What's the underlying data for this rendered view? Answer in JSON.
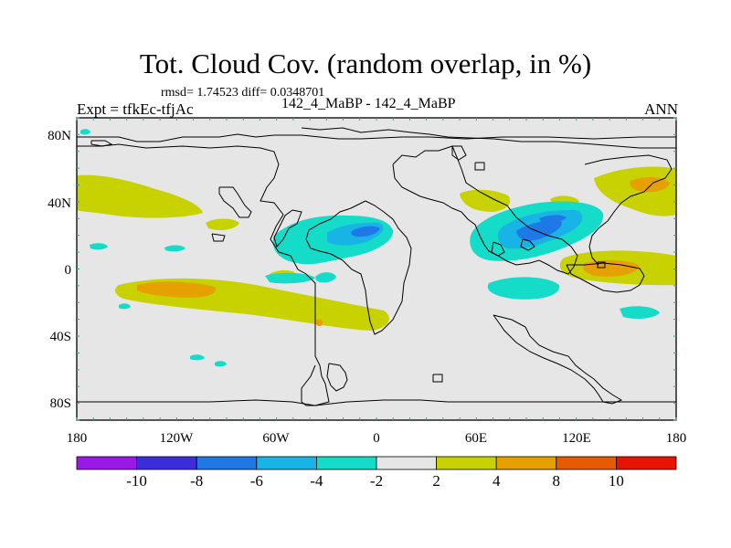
{
  "title": "Tot. Cloud Cov. (random overlap, in %)",
  "stats": "rmsd= 1.74523 diff= 0.0348701",
  "experiment": "Expt = tfkEc-tfjAc",
  "case": "142_4_MaBP - 142_4_MaBP",
  "season": "ANN",
  "lat_ticks": [
    "80N",
    "40N",
    "0",
    "40S",
    "80S"
  ],
  "lon_ticks": [
    "180",
    "120W",
    "60W",
    "0",
    "60E",
    "120E",
    "180"
  ],
  "colorbar": {
    "labels": [
      "-10",
      "-8",
      "-6",
      "-4",
      "-2",
      "2",
      "4",
      "8",
      "10"
    ],
    "colors": [
      "#9b19e6",
      "#3c2ddc",
      "#1e78e6",
      "#19b4e6",
      "#14dcc8",
      "#e6e6e6",
      "#c8d200",
      "#e6a000",
      "#e65a00",
      "#e61400"
    ]
  },
  "colors": {
    "land_border": "#000000",
    "frame_tick": "#3a9d8f"
  }
}
